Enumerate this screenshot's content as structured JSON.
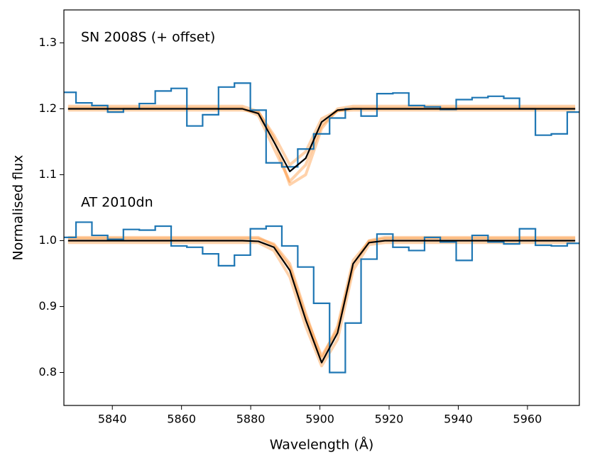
{
  "chart_data": {
    "type": "line",
    "xlabel": "Wavelength (Å)",
    "ylabel": "Normalised flux",
    "annotations": [
      "SN 2008S (+ offset)",
      "AT 2010dn"
    ],
    "xlim": [
      5826,
      5975
    ],
    "xticks": [
      5840,
      5860,
      5880,
      5900,
      5920,
      5940,
      5960
    ],
    "ylim": [
      0.75,
      1.35
    ],
    "yticks": [
      0.8,
      0.9,
      {
        "value": 1.0,
        "label": "1.0"
      },
      1.1,
      1.2,
      1.3
    ],
    "x": [
      5827.2,
      5831.8,
      5836.4,
      5840.9,
      5845.5,
      5850.1,
      5854.7,
      5859.3,
      5863.8,
      5868.4,
      5873.0,
      5877.6,
      5882.2,
      5886.7,
      5891.3,
      5895.9,
      5900.5,
      5905.1,
      5909.6,
      5914.2,
      5918.8,
      5923.4,
      5928.0,
      5932.5,
      5937.1,
      5941.7,
      5946.3,
      5950.9,
      5955.4,
      5960.0,
      5964.6,
      5969.2,
      5973.8
    ],
    "series": [
      {
        "style": "step",
        "color": "#1f77b4",
        "values": [
          1.225,
          1.209,
          1.205,
          1.195,
          1.2,
          1.208,
          1.227,
          1.231,
          1.174,
          1.191,
          1.233,
          1.239,
          1.198,
          1.118,
          1.112,
          1.139,
          1.162,
          1.186,
          1.2,
          1.189,
          1.223,
          1.224,
          1.205,
          1.203,
          1.199,
          1.214,
          1.217,
          1.219,
          1.216,
          1.2,
          1.16,
          1.162,
          1.195
        ]
      },
      {
        "style": "step",
        "color": "#1f77b4",
        "values": [
          1.005,
          1.028,
          1.008,
          1.002,
          1.017,
          1.016,
          1.022,
          0.992,
          0.99,
          0.98,
          0.962,
          0.978,
          1.018,
          1.022,
          0.992,
          0.96,
          0.905,
          0.8,
          0.875,
          0.972,
          1.01,
          0.99,
          0.985,
          1.005,
          0.998,
          0.97,
          1.008,
          0.998,
          0.995,
          1.018,
          0.993,
          0.992,
          0.996
        ]
      },
      {
        "style": "sample",
        "color": "#ff7f0e",
        "values": [
          1.201,
          1.201,
          1.201,
          1.201,
          1.201,
          1.201,
          1.201,
          1.201,
          1.201,
          1.201,
          1.201,
          1.201,
          1.19,
          1.14,
          1.09,
          1.115,
          1.175,
          1.197,
          1.201,
          1.201,
          1.201,
          1.201,
          1.201,
          1.201,
          1.201,
          1.201,
          1.201,
          1.201,
          1.201,
          1.201,
          1.201,
          1.201,
          1.201
        ]
      },
      {
        "style": "sample",
        "color": "#ff7f0e",
        "values": [
          1.198,
          1.198,
          1.198,
          1.198,
          1.198,
          1.198,
          1.198,
          1.198,
          1.198,
          1.198,
          1.198,
          1.198,
          1.195,
          1.16,
          1.115,
          1.135,
          1.185,
          1.197,
          1.198,
          1.198,
          1.198,
          1.198,
          1.198,
          1.198,
          1.198,
          1.198,
          1.198,
          1.198,
          1.198,
          1.198,
          1.198,
          1.198,
          1.198
        ]
      },
      {
        "style": "sample",
        "color": "#ff7f0e",
        "values": [
          1.204,
          1.204,
          1.204,
          1.204,
          1.204,
          1.204,
          1.204,
          1.204,
          1.204,
          1.204,
          1.204,
          1.204,
          1.196,
          1.155,
          1.085,
          1.1,
          1.17,
          1.2,
          1.204,
          1.204,
          1.204,
          1.204,
          1.204,
          1.204,
          1.204,
          1.204,
          1.204,
          1.204,
          1.204,
          1.204,
          1.204,
          1.204,
          1.204
        ]
      },
      {
        "style": "sample",
        "color": "#ff7f0e",
        "values": [
          1.003,
          1.003,
          1.003,
          1.003,
          1.003,
          1.003,
          1.003,
          1.003,
          1.003,
          1.003,
          1.003,
          1.003,
          1.003,
          0.995,
          0.965,
          0.89,
          0.82,
          0.87,
          0.97,
          0.999,
          1.003,
          1.003,
          1.003,
          1.003,
          1.003,
          1.003,
          1.003,
          1.003,
          1.003,
          1.003,
          1.003,
          1.003,
          1.003
        ]
      },
      {
        "style": "sample",
        "color": "#ff7f0e",
        "values": [
          0.997,
          0.997,
          0.997,
          0.997,
          0.997,
          0.997,
          0.997,
          0.997,
          0.997,
          0.997,
          0.997,
          0.997,
          0.997,
          0.985,
          0.945,
          0.87,
          0.81,
          0.85,
          0.955,
          0.994,
          0.997,
          0.997,
          0.997,
          0.997,
          0.997,
          0.997,
          0.997,
          0.997,
          0.997,
          0.997,
          0.997,
          0.997,
          0.997
        ]
      },
      {
        "style": "sample",
        "color": "#ff7f0e",
        "values": [
          1.005,
          1.005,
          1.005,
          1.005,
          1.005,
          1.005,
          1.005,
          1.005,
          1.005,
          1.005,
          1.005,
          1.005,
          1.005,
          0.993,
          0.96,
          0.885,
          0.825,
          0.865,
          0.962,
          1.0,
          1.005,
          1.005,
          1.005,
          1.005,
          1.005,
          1.005,
          1.005,
          1.005,
          1.005,
          1.005,
          1.005,
          1.005,
          1.005
        ]
      },
      {
        "style": "fit",
        "color": "#000000",
        "values": [
          1.2,
          1.2,
          1.2,
          1.2,
          1.2,
          1.2,
          1.2,
          1.2,
          1.2,
          1.2,
          1.2,
          1.2,
          1.193,
          1.15,
          1.105,
          1.125,
          1.18,
          1.198,
          1.2,
          1.2,
          1.2,
          1.2,
          1.2,
          1.2,
          1.2,
          1.2,
          1.2,
          1.2,
          1.2,
          1.2,
          1.2,
          1.2,
          1.2
        ]
      },
      {
        "style": "fit",
        "color": "#000000",
        "values": [
          1.0,
          1.0,
          1.0,
          1.0,
          1.0,
          1.0,
          1.0,
          1.0,
          1.0,
          1.0,
          1.0,
          1.0,
          0.999,
          0.99,
          0.955,
          0.88,
          0.815,
          0.86,
          0.965,
          0.997,
          1.0,
          1.0,
          1.0,
          1.0,
          1.0,
          1.0,
          1.0,
          1.0,
          1.0,
          1.0,
          1.0,
          1.0,
          1.0
        ]
      }
    ]
  }
}
